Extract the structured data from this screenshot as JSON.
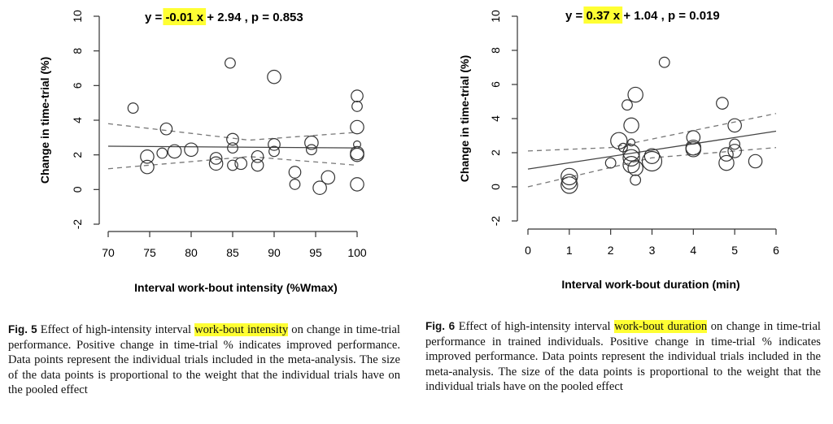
{
  "chart_data": [
    {
      "type": "scatter",
      "id": "fig5",
      "equation": {
        "prefix": "y = ",
        "slope": "-0.01 x",
        "suffix": " +  2.94 ,  p = 0.853"
      },
      "xlabel": "Interval work-bout intensity (%Wmax)",
      "ylabel": "Change in time-trial (%)",
      "xlim": [
        70,
        100
      ],
      "ylim": [
        -2,
        10
      ],
      "xticks": [
        70,
        75,
        80,
        85,
        90,
        95,
        100
      ],
      "yticks": [
        -2,
        0,
        2,
        4,
        6,
        8,
        10
      ],
      "fit_line": {
        "x": [
          70,
          100
        ],
        "y": [
          2.5,
          2.4
        ]
      },
      "ci_upper": {
        "x": [
          70,
          87,
          100
        ],
        "y": [
          3.8,
          2.85,
          3.3
        ]
      },
      "ci_lower": {
        "x": [
          70,
          87,
          100
        ],
        "y": [
          1.2,
          1.9,
          1.4
        ]
      },
      "points": [
        {
          "x": 73,
          "y": 4.7,
          "w": 2
        },
        {
          "x": 74.7,
          "y": 1.9,
          "w": 3
        },
        {
          "x": 74.7,
          "y": 1.3,
          "w": 3
        },
        {
          "x": 76.5,
          "y": 2.1,
          "w": 2
        },
        {
          "x": 77,
          "y": 3.5,
          "w": 2.5
        },
        {
          "x": 78,
          "y": 2.2,
          "w": 3
        },
        {
          "x": 80,
          "y": 2.3,
          "w": 3
        },
        {
          "x": 83,
          "y": 1.8,
          "w": 2.5
        },
        {
          "x": 83,
          "y": 1.5,
          "w": 3
        },
        {
          "x": 84.7,
          "y": 7.3,
          "w": 2
        },
        {
          "x": 85,
          "y": 2.9,
          "w": 2.5
        },
        {
          "x": 85,
          "y": 2.4,
          "w": 2
        },
        {
          "x": 85,
          "y": 1.4,
          "w": 2
        },
        {
          "x": 86,
          "y": 1.5,
          "w": 2.5
        },
        {
          "x": 88,
          "y": 1.9,
          "w": 2.5
        },
        {
          "x": 88,
          "y": 1.4,
          "w": 2.5
        },
        {
          "x": 90,
          "y": 6.5,
          "w": 3
        },
        {
          "x": 90,
          "y": 2.6,
          "w": 2.5
        },
        {
          "x": 90,
          "y": 2.2,
          "w": 2
        },
        {
          "x": 92.5,
          "y": 1.0,
          "w": 2.5
        },
        {
          "x": 92.5,
          "y": 0.3,
          "w": 2
        },
        {
          "x": 94.5,
          "y": 2.7,
          "w": 3
        },
        {
          "x": 94.5,
          "y": 2.3,
          "w": 2
        },
        {
          "x": 95.5,
          "y": 0.1,
          "w": 3
        },
        {
          "x": 96.5,
          "y": 0.7,
          "w": 3
        },
        {
          "x": 100,
          "y": 5.4,
          "w": 2.5
        },
        {
          "x": 100,
          "y": 4.8,
          "w": 2
        },
        {
          "x": 100,
          "y": 3.6,
          "w": 3
        },
        {
          "x": 100,
          "y": 2.6,
          "w": 1
        },
        {
          "x": 100,
          "y": 2.1,
          "w": 3
        },
        {
          "x": 100,
          "y": 2.0,
          "w": 3
        },
        {
          "x": 100,
          "y": 0.3,
          "w": 3
        }
      ]
    },
    {
      "type": "scatter",
      "id": "fig6",
      "equation": {
        "prefix": "y = ",
        "slope": "0.37 x",
        "suffix": " +  1.04 ,  p = 0.019"
      },
      "xlabel": "Interval work-bout duration (min)",
      "ylabel": "Change in time-trial (%)",
      "xlim": [
        0,
        6
      ],
      "ylim": [
        -2,
        10
      ],
      "xticks": [
        0,
        1,
        2,
        3,
        4,
        5,
        6
      ],
      "yticks": [
        -2,
        0,
        2,
        4,
        6,
        8,
        10
      ],
      "fit_line": {
        "x": [
          0,
          6
        ],
        "y": [
          1.04,
          3.26
        ]
      },
      "ci_upper": {
        "x": [
          0,
          2,
          6
        ],
        "y": [
          2.1,
          2.3,
          4.3
        ]
      },
      "ci_lower": {
        "x": [
          0,
          3,
          6
        ],
        "y": [
          0.0,
          1.7,
          2.3
        ]
      },
      "points": [
        {
          "x": 1,
          "y": 0.6,
          "w": 4
        },
        {
          "x": 1,
          "y": 0.1,
          "w": 4
        },
        {
          "x": 1,
          "y": 0.3,
          "w": 3.5
        },
        {
          "x": 2,
          "y": 1.4,
          "w": 2
        },
        {
          "x": 2.2,
          "y": 2.7,
          "w": 4
        },
        {
          "x": 2.3,
          "y": 2.3,
          "w": 1.5
        },
        {
          "x": 2.4,
          "y": 4.8,
          "w": 2
        },
        {
          "x": 2.5,
          "y": 3.6,
          "w": 3.5
        },
        {
          "x": 2.5,
          "y": 2.6,
          "w": 1
        },
        {
          "x": 2.5,
          "y": 2.0,
          "w": 4
        },
        {
          "x": 2.5,
          "y": 1.7,
          "w": 4
        },
        {
          "x": 2.5,
          "y": 1.3,
          "w": 4
        },
        {
          "x": 2.6,
          "y": 5.4,
          "w": 3.5
        },
        {
          "x": 2.6,
          "y": 1.1,
          "w": 3.5
        },
        {
          "x": 2.6,
          "y": 0.4,
          "w": 2
        },
        {
          "x": 3,
          "y": 1.8,
          "w": 3.5
        },
        {
          "x": 3,
          "y": 1.5,
          "w": 5
        },
        {
          "x": 3.3,
          "y": 7.3,
          "w": 2
        },
        {
          "x": 4,
          "y": 2.9,
          "w": 3
        },
        {
          "x": 4,
          "y": 2.3,
          "w": 3.5
        },
        {
          "x": 4,
          "y": 2.2,
          "w": 3.5
        },
        {
          "x": 4.7,
          "y": 4.9,
          "w": 2.5
        },
        {
          "x": 4.8,
          "y": 1.9,
          "w": 3
        },
        {
          "x": 4.8,
          "y": 1.4,
          "w": 3.5
        },
        {
          "x": 5,
          "y": 3.6,
          "w": 3
        },
        {
          "x": 5,
          "y": 2.5,
          "w": 2
        },
        {
          "x": 5,
          "y": 2.1,
          "w": 3
        },
        {
          "x": 5.5,
          "y": 1.5,
          "w": 3
        }
      ]
    }
  ],
  "captions": {
    "fig5": {
      "label": "Fig. 5",
      "before": "  Effect of high-intensity interval ",
      "highlight": "work-bout intensity",
      "after": " on change in time-trial performance. Positive change in time-trial % indicates improved performance. Data points represent the individual trials included in the meta-analysis. The size of the data points is proportional to the weight that the individual trials have on the pooled effect"
    },
    "fig6": {
      "label": "Fig. 6",
      "before": "  Effect of high-intensity interval ",
      "highlight": "work-bout duration",
      "after": " on change in time-trial performance in trained individuals. Positive change in time-trial % indicates improved performance. Data points represent the individual trials included in the meta-analysis. The size of the data points is proportional to the weight that the individual trials have on the pooled effect"
    }
  }
}
